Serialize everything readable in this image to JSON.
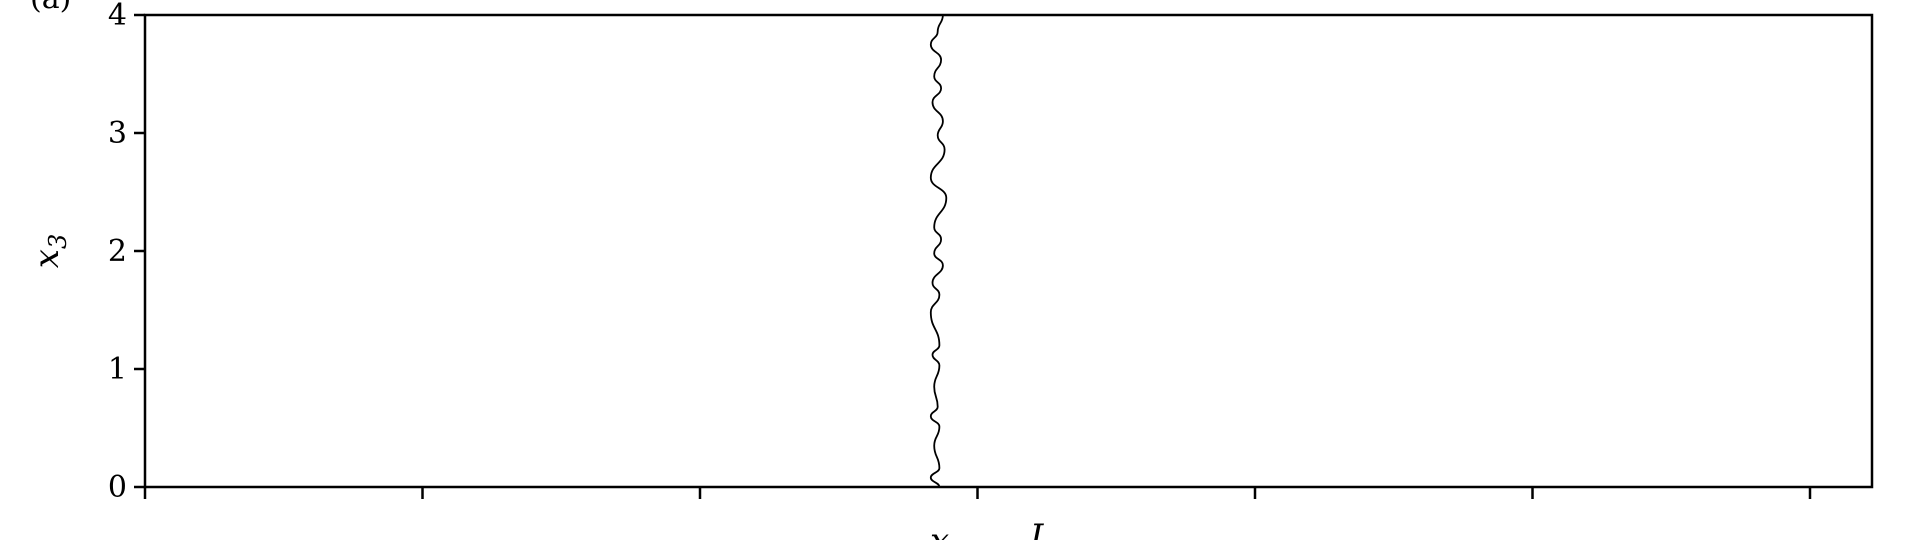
{
  "panel_label": "(a)",
  "chart_data": {
    "type": "line",
    "title": "",
    "xlabel": "x",
    "xlabel_right": "L",
    "ylabel": "x",
    "ylabel_subscript": "3",
    "ylim": [
      0,
      4
    ],
    "yticks": [
      "0",
      "1",
      "2",
      "3",
      "4"
    ],
    "xticks_count": 7,
    "x_ticklabels_visible": false,
    "grid": false,
    "legend": "none",
    "line_color": "#000000",
    "series": [
      {
        "values": [
          {
            "x": 0.46,
            "y": 0.0
          },
          {
            "x": 0.455,
            "y": 0.08
          },
          {
            "x": 0.46,
            "y": 0.16
          },
          {
            "x": 0.457,
            "y": 0.35
          },
          {
            "x": 0.46,
            "y": 0.51
          },
          {
            "x": 0.455,
            "y": 0.6
          },
          {
            "x": 0.459,
            "y": 0.68
          },
          {
            "x": 0.457,
            "y": 0.85
          },
          {
            "x": 0.46,
            "y": 1.03
          },
          {
            "x": 0.456,
            "y": 1.12
          },
          {
            "x": 0.46,
            "y": 1.2
          },
          {
            "x": 0.455,
            "y": 1.48
          },
          {
            "x": 0.46,
            "y": 1.63
          },
          {
            "x": 0.456,
            "y": 1.73
          },
          {
            "x": 0.462,
            "y": 1.88
          },
          {
            "x": 0.457,
            "y": 1.98
          },
          {
            "x": 0.461,
            "y": 2.1
          },
          {
            "x": 0.457,
            "y": 2.2
          },
          {
            "x": 0.464,
            "y": 2.45
          },
          {
            "x": 0.455,
            "y": 2.62
          },
          {
            "x": 0.463,
            "y": 2.86
          },
          {
            "x": 0.459,
            "y": 2.98
          },
          {
            "x": 0.462,
            "y": 3.1
          },
          {
            "x": 0.456,
            "y": 3.26
          },
          {
            "x": 0.461,
            "y": 3.38
          },
          {
            "x": 0.457,
            "y": 3.48
          },
          {
            "x": 0.461,
            "y": 3.62
          },
          {
            "x": 0.455,
            "y": 3.75
          },
          {
            "x": 0.459,
            "y": 3.86
          },
          {
            "x": 0.462,
            "y": 4.0
          }
        ]
      }
    ]
  }
}
